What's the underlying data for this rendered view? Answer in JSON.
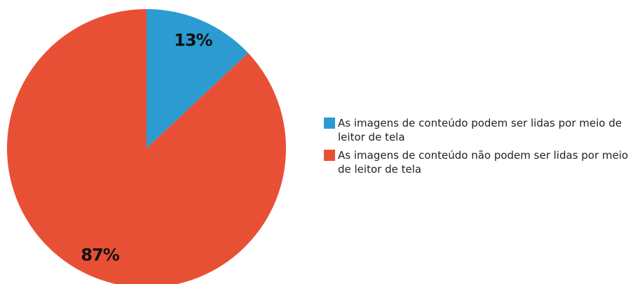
{
  "chart_data": {
    "type": "pie",
    "categories": [
      "As imagens de conteúdo podem ser lidas por meio de leitor de tela",
      "As imagens de conteúdo não podem ser lidas por meio de leitor de tela"
    ],
    "values": [
      13,
      87
    ],
    "value_labels": [
      "13%",
      "87%"
    ],
    "colors": [
      "#2b9bd2",
      "#e85035"
    ],
    "legend": "right"
  }
}
